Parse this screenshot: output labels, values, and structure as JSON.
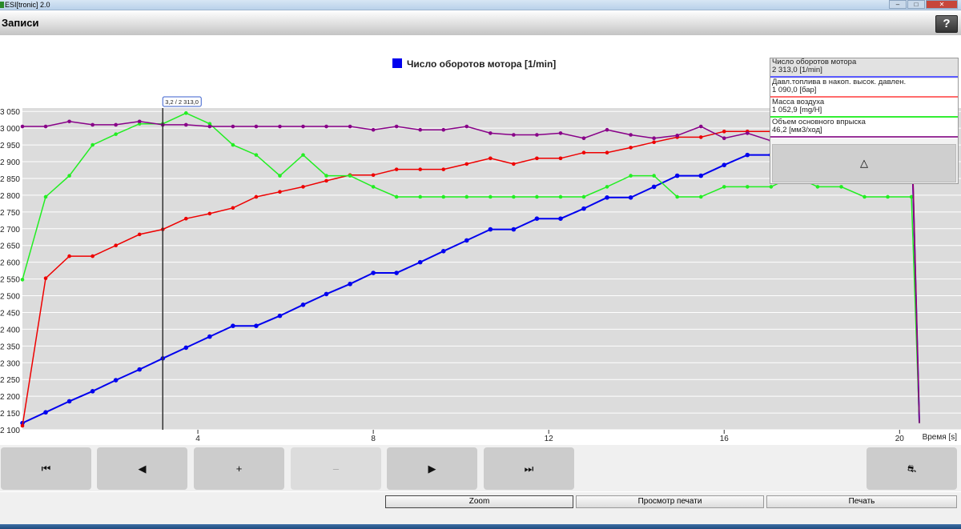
{
  "window": {
    "title": "ESI[tronic] 2.0"
  },
  "header": {
    "title": "Записи",
    "help_label": "?"
  },
  "chart_data": {
    "type": "line",
    "title": "Число оборотов мотора [1/min]",
    "xlabel": "Время [s]",
    "ylabel": "",
    "xlim": [
      0,
      21.4
    ],
    "ylim": [
      2100,
      3060
    ],
    "x_ticks": [
      "4",
      "8",
      "12",
      "16",
      "20"
    ],
    "y_ticks": [
      "2 100",
      "2 150",
      "2 200",
      "2 250",
      "2 300",
      "2 350",
      "2 400",
      "2 450",
      "2 500",
      "2 550",
      "2 600",
      "2 650",
      "2 700",
      "2 750",
      "2 800",
      "2 850",
      "2 900",
      "2 950",
      "3 000",
      "3 050"
    ],
    "grid": true,
    "cursor": {
      "x": 3.2,
      "label": "3,2 / 2 313,0"
    },
    "series": [
      {
        "name": "Число оборотов мотора",
        "color": "#0000ee",
        "x": [
          0,
          0.53,
          1.07,
          1.6,
          2.13,
          2.67,
          3.2,
          3.73,
          4.27,
          4.8,
          5.33,
          5.87,
          6.4,
          6.93,
          7.47,
          8,
          8.53,
          9.07,
          9.6,
          10.13,
          10.67,
          11.2,
          11.73,
          12.27,
          12.8,
          13.33,
          13.87,
          14.4,
          14.93,
          15.47,
          16,
          16.53,
          17.07,
          17.6,
          18.13,
          18.67,
          19.2,
          19.73,
          20.27,
          20.45
        ],
        "values": [
          2120,
          2152,
          2185,
          2215,
          2248,
          2280,
          2313,
          2345,
          2378,
          2410,
          2410,
          2440,
          2473,
          2505,
          2535,
          2568,
          2568,
          2600,
          2633,
          2665,
          2698,
          2698,
          2730,
          2730,
          2760,
          2793,
          2793,
          2825,
          2858,
          2858,
          2890,
          2920,
          2920,
          2955,
          2955,
          2990,
          2990,
          3005,
          3005,
          2120
        ]
      },
      {
        "name": "Давл.топлива в накоп. высок. давлен.",
        "color": "#ee0000",
        "x": [
          0,
          0.53,
          1.07,
          1.6,
          2.13,
          2.67,
          3.2,
          3.73,
          4.27,
          4.8,
          5.33,
          5.87,
          6.4,
          6.93,
          7.47,
          8,
          8.53,
          9.07,
          9.6,
          10.13,
          10.67,
          11.2,
          11.73,
          12.27,
          12.8,
          13.33,
          13.87,
          14.4,
          14.93,
          15.47,
          16,
          16.53,
          17.07,
          17.6,
          18.13,
          18.67,
          19.2,
          19.73,
          20.27,
          20.45
        ],
        "values": [
          2112,
          2552,
          2618,
          2618,
          2650,
          2683,
          2698,
          2730,
          2745,
          2762,
          2795,
          2810,
          2825,
          2843,
          2860,
          2860,
          2877,
          2877,
          2877,
          2893,
          2910,
          2893,
          2910,
          2910,
          2927,
          2927,
          2942,
          2958,
          2973,
          2973,
          2990,
          2990,
          2990,
          3007,
          3007,
          3007,
          3023,
          3023,
          3023,
          2120
        ]
      },
      {
        "name": "Масса воздуха",
        "color": "#22ee22",
        "x": [
          0,
          0.53,
          1.07,
          1.6,
          2.13,
          2.67,
          3.2,
          3.73,
          4.27,
          4.8,
          5.33,
          5.87,
          6.4,
          6.93,
          7.47,
          8,
          8.53,
          9.07,
          9.6,
          10.13,
          10.67,
          11.2,
          11.73,
          12.27,
          12.8,
          13.33,
          13.87,
          14.4,
          14.93,
          15.47,
          16,
          16.53,
          17.07,
          17.6,
          18.13,
          18.67,
          19.2,
          19.73,
          20.27,
          20.45
        ],
        "values": [
          2548,
          2795,
          2858,
          2950,
          2982,
          3013,
          3013,
          3045,
          3013,
          2950,
          2920,
          2858,
          2920,
          2858,
          2858,
          2825,
          2795,
          2795,
          2795,
          2795,
          2795,
          2795,
          2795,
          2795,
          2795,
          2825,
          2858,
          2858,
          2795,
          2795,
          2825,
          2825,
          2825,
          2858,
          2825,
          2825,
          2795,
          2795,
          2795,
          2120
        ]
      },
      {
        "name": "Объем основного впрыска",
        "color": "#880088",
        "x": [
          0,
          0.53,
          1.07,
          1.6,
          2.13,
          2.67,
          3.2,
          3.73,
          4.27,
          4.8,
          5.33,
          5.87,
          6.4,
          6.93,
          7.47,
          8,
          8.53,
          9.07,
          9.6,
          10.13,
          10.67,
          11.2,
          11.73,
          12.27,
          12.8,
          13.33,
          13.87,
          14.4,
          14.93,
          15.47,
          16,
          16.53,
          17.07,
          17.6,
          18.13,
          18.67,
          19.2,
          19.73,
          20.27,
          20.45
        ],
        "values": [
          3005,
          3005,
          3020,
          3010,
          3010,
          3020,
          3010,
          3010,
          3005,
          3005,
          3005,
          3005,
          3005,
          3005,
          3005,
          2995,
          3005,
          2995,
          2995,
          3005,
          2985,
          2980,
          2980,
          2985,
          2970,
          2995,
          2980,
          2970,
          2978,
          3005,
          2970,
          2985,
          2962,
          2995,
          2970,
          2995,
          2980,
          2985,
          2990,
          2120
        ]
      }
    ]
  },
  "legend_panel": {
    "items": [
      {
        "label": "Число оборотов мотора",
        "value": "2 313,0 [1/min]",
        "color": "#5b5bff"
      },
      {
        "label": "Давл.топлива в накоп. высок. давлен.",
        "value": "1 090,0 [бар]",
        "color": "#ff6b6b"
      },
      {
        "label": "Масса воздуха",
        "value": "1 052,9 [mg/H]",
        "color": "#33ee33"
      },
      {
        "label": "Объем основного впрыска",
        "value": "46,2 [мм3/ход]",
        "color": "#993399"
      }
    ],
    "scroll_up_label": "△"
  },
  "toolbar": {
    "first_label": "⏮",
    "prev_label": "◀",
    "zoom_in_label": "+",
    "zoom_out_label": "–",
    "next_label": "▶",
    "last_label": "⏭",
    "settings_label": "⛐"
  },
  "bottom": {
    "zoom_label": "Zoom",
    "print_preview_label": "Просмотр печати",
    "print_label": "Печать"
  }
}
